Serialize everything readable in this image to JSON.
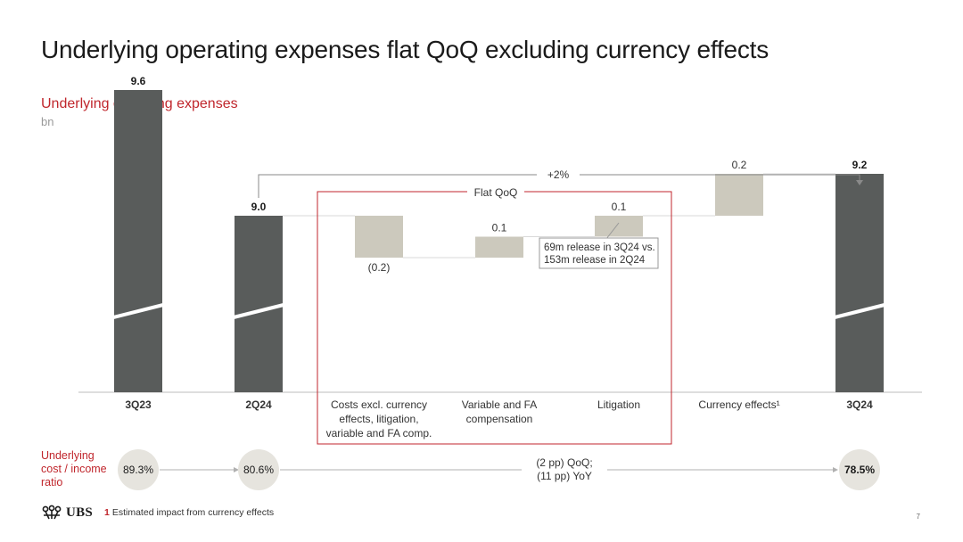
{
  "title": "Underlying operating expenses flat QoQ excluding currency effects",
  "subtitle": "Underlying operating expenses",
  "unit": "bn",
  "chart_data": {
    "type": "bar",
    "subtype": "waterfall",
    "categories": [
      "3Q23",
      "2Q24",
      "Costs excl. currency effects, litigation, variable and FA comp.",
      "Variable and FA compensation",
      "Litigation",
      "Currency effects¹",
      "3Q24"
    ],
    "category_lines": [
      [
        "3Q23"
      ],
      [
        "2Q24"
      ],
      [
        "Costs excl. currency",
        "effects, litigation,",
        "variable and FA comp."
      ],
      [
        "Variable and FA",
        "compensation"
      ],
      [
        "Litigation"
      ],
      [
        "Currency effects¹"
      ],
      [
        "3Q24"
      ]
    ],
    "category_bold": [
      true,
      true,
      false,
      false,
      false,
      false,
      true
    ],
    "values": [
      9.6,
      9.0,
      -0.2,
      0.1,
      0.1,
      0.2,
      9.2
    ],
    "value_labels": [
      "9.6",
      "9.0",
      "(0.2)",
      "0.1",
      "0.1",
      "0.2",
      "9.2"
    ],
    "kinds": [
      "total",
      "total",
      "delta",
      "delta",
      "delta",
      "delta",
      "total"
    ],
    "axis_break": true,
    "colors": {
      "total": "#595c5b",
      "delta": "#ccc9bd",
      "accent": "#c0262c",
      "connector": "#8a8a8a",
      "circle": "#e6e4de"
    },
    "annotations": {
      "growth": "+2%",
      "box_label": "Flat QoQ",
      "callout": [
        "69m release in 3Q24 vs.",
        "153m release in 2Q24"
      ]
    }
  },
  "ratio": {
    "label": "Underlying cost / income ratio",
    "label_lines": [
      "Underlying",
      "cost / income",
      "ratio"
    ],
    "values": [
      "89.3%",
      "80.6%",
      "78.5%"
    ],
    "last_bold": true,
    "change_lines": [
      "(2 pp) QoQ;",
      "(11 pp) YoY"
    ]
  },
  "footer": {
    "logo": "UBS",
    "footnote_num": "1",
    "footnote": "Estimated impact from currency effects",
    "page": "7"
  }
}
